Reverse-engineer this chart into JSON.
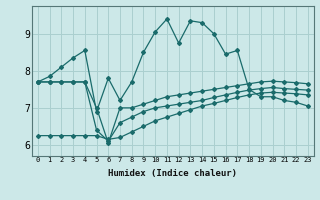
{
  "xlabel": "Humidex (Indice chaleur)",
  "ylabel": "",
  "bg_color": "#cce8e8",
  "line_color": "#1a6b6b",
  "grid_color": "#aacfcf",
  "xlim": [
    -0.5,
    23.5
  ],
  "ylim": [
    5.7,
    9.75
  ],
  "xticks": [
    0,
    1,
    2,
    3,
    4,
    5,
    6,
    7,
    8,
    9,
    10,
    11,
    12,
    13,
    14,
    15,
    16,
    17,
    18,
    19,
    20,
    21,
    22,
    23
  ],
  "yticks": [
    6,
    7,
    8,
    9
  ],
  "series": [
    [
      7.7,
      7.85,
      8.1,
      8.35,
      8.55,
      6.9,
      7.8,
      7.2,
      7.7,
      8.5,
      9.05,
      9.4,
      8.75,
      9.35,
      9.3,
      9.0,
      8.45,
      8.55,
      7.5,
      7.3,
      7.3,
      7.2,
      7.15,
      7.05
    ],
    [
      7.7,
      7.7,
      7.7,
      7.7,
      7.7,
      7.0,
      6.05,
      7.0,
      7.0,
      7.1,
      7.2,
      7.3,
      7.35,
      7.4,
      7.45,
      7.5,
      7.55,
      7.6,
      7.65,
      7.7,
      7.72,
      7.7,
      7.68,
      7.65
    ],
    [
      7.7,
      7.7,
      7.7,
      7.7,
      7.7,
      6.4,
      6.1,
      6.6,
      6.75,
      6.9,
      7.0,
      7.05,
      7.1,
      7.15,
      7.2,
      7.28,
      7.35,
      7.42,
      7.48,
      7.52,
      7.55,
      7.52,
      7.5,
      7.48
    ],
    [
      6.25,
      6.25,
      6.25,
      6.25,
      6.25,
      6.25,
      6.15,
      6.2,
      6.35,
      6.5,
      6.65,
      6.75,
      6.85,
      6.95,
      7.05,
      7.12,
      7.2,
      7.28,
      7.35,
      7.4,
      7.42,
      7.4,
      7.38,
      7.35
    ]
  ]
}
